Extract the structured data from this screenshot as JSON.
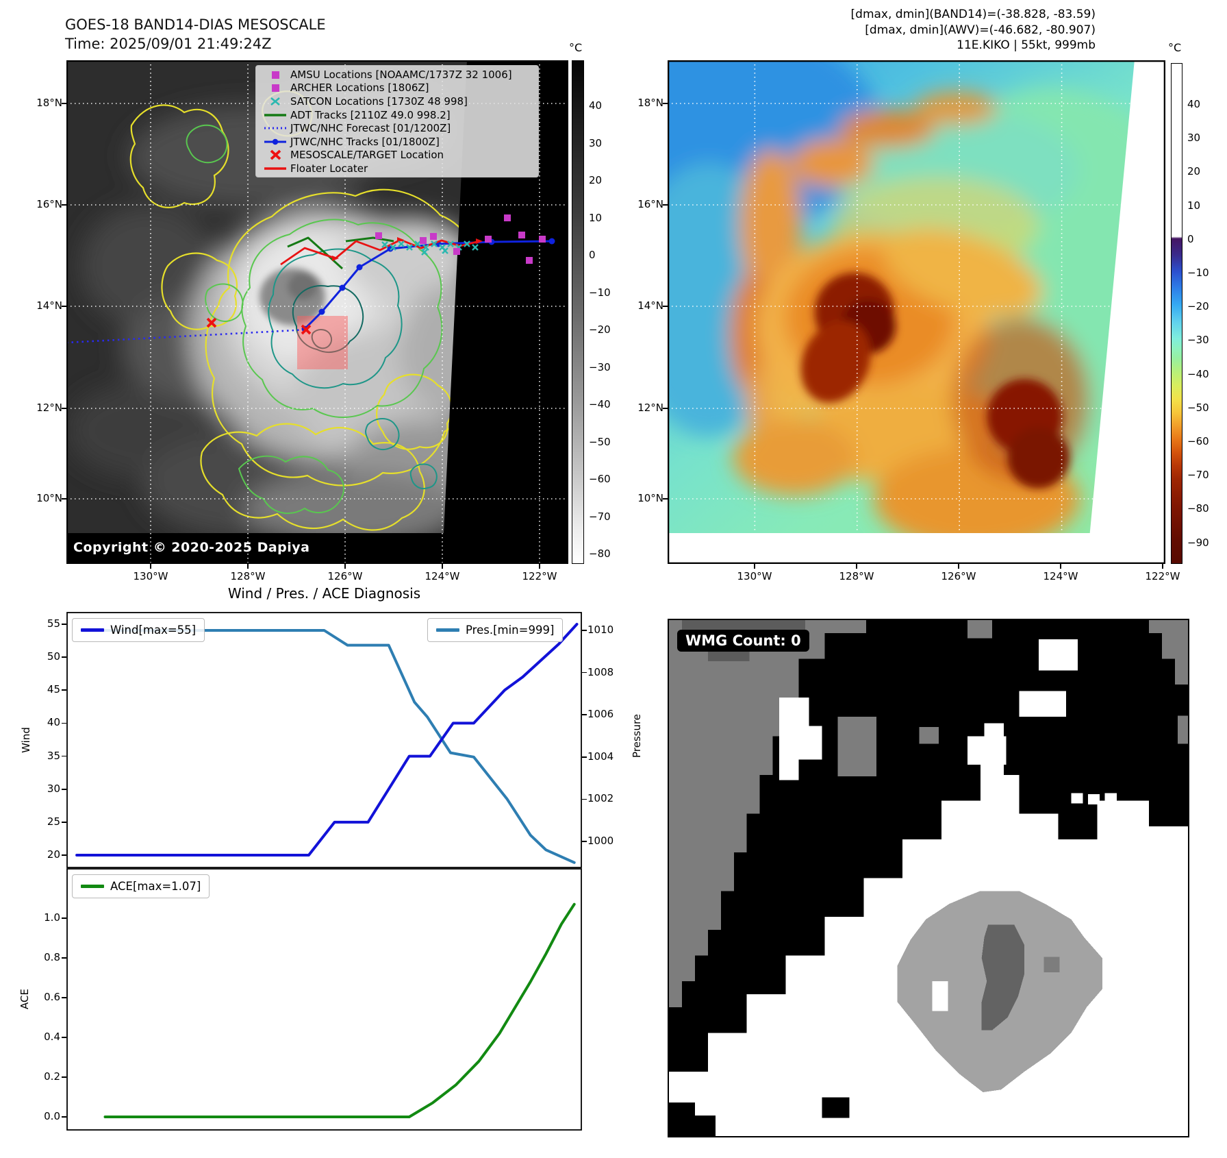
{
  "header": {
    "title_line1": "GOES-18 BAND14-DIAS MESOSCALE",
    "title_line2": "Time: 2025/09/01 21:49:24Z",
    "right_line1": "[dmax, dmin](BAND14)=(-38.828, -83.59)",
    "right_line2": "[dmax, dmin](AWV)=(-46.682, -80.907)",
    "right_line3": "11E.KIKO | 55kt, 999mb"
  },
  "left_map": {
    "copyright": "Copyright © 2020-2025 Dapiya",
    "xticks": [
      "130°W",
      "128°W",
      "126°W",
      "124°W",
      "122°W"
    ],
    "yticks": [
      "18°N",
      "16°N",
      "14°N",
      "12°N",
      "10°N"
    ],
    "colorbar": {
      "unit": "°C",
      "ticks": [
        "40",
        "30",
        "20",
        "10",
        "0",
        "−10",
        "−20",
        "−30",
        "−40",
        "−50",
        "−60",
        "−70",
        "−80"
      ]
    },
    "legend": {
      "items": [
        {
          "marker": "square",
          "color": "#c83ac8",
          "label": "AMSU Locations [NOAAMC/1737Z 32 1006]"
        },
        {
          "marker": "square",
          "color": "#c83ac8",
          "label": "ARCHER Locations [1806Z]"
        },
        {
          "marker": "x",
          "color": "#2ab8b0",
          "label": "SATCON Locations [1730Z 48 998]"
        },
        {
          "marker": "line",
          "color": "#157a15",
          "label": "ADT Tracks [2110Z 49.0 998.2]"
        },
        {
          "marker": "dotted",
          "color": "#2a2aee",
          "label": "JTWC/NHC Forecast [01/1200Z]"
        },
        {
          "marker": "line-dot",
          "color": "#0f22dd",
          "label": "JTWC/NHC Tracks [01/1800Z]"
        },
        {
          "marker": "x-bold",
          "color": "#ee1111",
          "label": "MESOSCALE/TARGET Location"
        },
        {
          "marker": "line",
          "color": "#e81212",
          "label": "Floater Locater"
        }
      ]
    },
    "overlays": {
      "jtwc_track": [
        [
          348,
          392
        ],
        [
          373,
          367
        ],
        [
          403,
          332
        ],
        [
          428,
          302
        ],
        [
          473,
          275
        ],
        [
          543,
          268
        ],
        [
          621,
          265
        ],
        [
          709,
          264
        ]
      ],
      "forecast": [
        [
          0,
          412
        ],
        [
          353,
          393
        ]
      ],
      "floater": [
        [
          313,
          298
        ],
        [
          348,
          274
        ],
        [
          393,
          289
        ],
        [
          423,
          264
        ],
        [
          458,
          277
        ],
        [
          488,
          262
        ],
        [
          518,
          274
        ],
        [
          548,
          263
        ],
        [
          575,
          271
        ],
        [
          603,
          264
        ]
      ],
      "adt": [
        [
          [
            323,
            272
          ],
          [
            353,
            259
          ],
          [
            381,
            284
          ],
          [
            403,
            304
          ]
        ],
        [
          [
            408,
            264
          ],
          [
            448,
            259
          ],
          [
            478,
            264
          ]
        ]
      ],
      "satcon": [
        [
          465,
          269
        ],
        [
          477,
          273
        ],
        [
          489,
          268
        ],
        [
          501,
          273
        ],
        [
          513,
          268
        ],
        [
          525,
          273
        ],
        [
          537,
          268
        ],
        [
          549,
          273
        ],
        [
          561,
          268
        ],
        [
          573,
          273
        ],
        [
          585,
          268
        ],
        [
          597,
          273
        ],
        [
          523,
          280
        ],
        [
          553,
          278
        ]
      ],
      "amsu": [
        [
          456,
          256
        ],
        [
          521,
          263
        ],
        [
          536,
          257
        ],
        [
          570,
          279
        ],
        [
          616,
          261
        ],
        [
          644,
          230
        ],
        [
          665,
          255
        ],
        [
          695,
          261
        ],
        [
          676,
          292
        ]
      ],
      "target_x": [
        [
          212,
          383
        ],
        [
          350,
          393
        ]
      ],
      "target_box": [
        337,
        373,
        74,
        78
      ]
    }
  },
  "right_map": {
    "xticks": [
      "130°W",
      "128°W",
      "126°W",
      "124°W",
      "122°W"
    ],
    "yticks": [
      "18°N",
      "16°N",
      "14°N",
      "12°N",
      "10°N"
    ],
    "colorbar": {
      "unit": "°C",
      "ticks": [
        "40",
        "30",
        "20",
        "10",
        "0",
        "−10",
        "−20",
        "−30",
        "−40",
        "−50",
        "−60",
        "−70",
        "−80",
        "−90"
      ]
    }
  },
  "diagnosis": {
    "title": "Wind / Pres. / ACE Diagnosis",
    "wind_axis_label": "Wind",
    "pressure_axis_label": "Pressure",
    "ace_axis_label": "ACE"
  },
  "wmg": {
    "label": "WMG Count: 0"
  },
  "chart_data": [
    {
      "type": "line",
      "title": "Wind / Pres. / ACE Diagnosis",
      "x_axis": "time (unlabeled in figure)",
      "ylabel": "Wind",
      "y2label": "Pressure",
      "ylim": [
        18.5,
        56.5
      ],
      "y2lim": [
        998.7,
        1010.9
      ],
      "yticks": [
        20,
        25,
        30,
        35,
        40,
        45,
        50,
        55
      ],
      "y2ticks": [
        1000,
        1002,
        1004,
        1006,
        1008,
        1010
      ],
      "grid": false,
      "legend_position": "top-left and top-right",
      "series": [
        {
          "name": "Wind[max=55]",
          "color": "#1212d8",
          "axis": "left",
          "points": [
            [
              0.02,
              20
            ],
            [
              0.47,
              20
            ],
            [
              0.52,
              25
            ],
            [
              0.585,
              25
            ],
            [
              0.665,
              35
            ],
            [
              0.705,
              35
            ],
            [
              0.75,
              40
            ],
            [
              0.79,
              40
            ],
            [
              0.85,
              45
            ],
            [
              0.885,
              47
            ],
            [
              0.955,
              52
            ],
            [
              0.99,
              55
            ]
          ]
        },
        {
          "name": "Pres.[min=999]",
          "color": "#2e7eb2",
          "axis": "right",
          "points": [
            [
              0.04,
              1010
            ],
            [
              0.5,
              1010
            ],
            [
              0.545,
              1009.3
            ],
            [
              0.625,
              1009.3
            ],
            [
              0.675,
              1006.6
            ],
            [
              0.7,
              1005.9
            ],
            [
              0.745,
              1004.2
            ],
            [
              0.79,
              1004.0
            ],
            [
              0.855,
              1002.0
            ],
            [
              0.9,
              1000.3
            ],
            [
              0.93,
              999.6
            ],
            [
              0.985,
              999.0
            ]
          ]
        }
      ]
    },
    {
      "type": "line",
      "ylabel": "ACE",
      "ylim": [
        -0.05,
        1.12
      ],
      "yticks": [
        0.0,
        0.2,
        0.4,
        0.6,
        0.8,
        1.0
      ],
      "grid": false,
      "legend_position": "top-left",
      "series": [
        {
          "name": "ACE[max=1.07]",
          "color": "#128a12",
          "points": [
            [
              0.075,
              0
            ],
            [
              0.665,
              0
            ],
            [
              0.71,
              0.07
            ],
            [
              0.755,
              0.16
            ],
            [
              0.8,
              0.28
            ],
            [
              0.84,
              0.42
            ],
            [
              0.87,
              0.55
            ],
            [
              0.9,
              0.68
            ],
            [
              0.93,
              0.82
            ],
            [
              0.96,
              0.97
            ],
            [
              0.985,
              1.07
            ]
          ]
        }
      ]
    }
  ]
}
